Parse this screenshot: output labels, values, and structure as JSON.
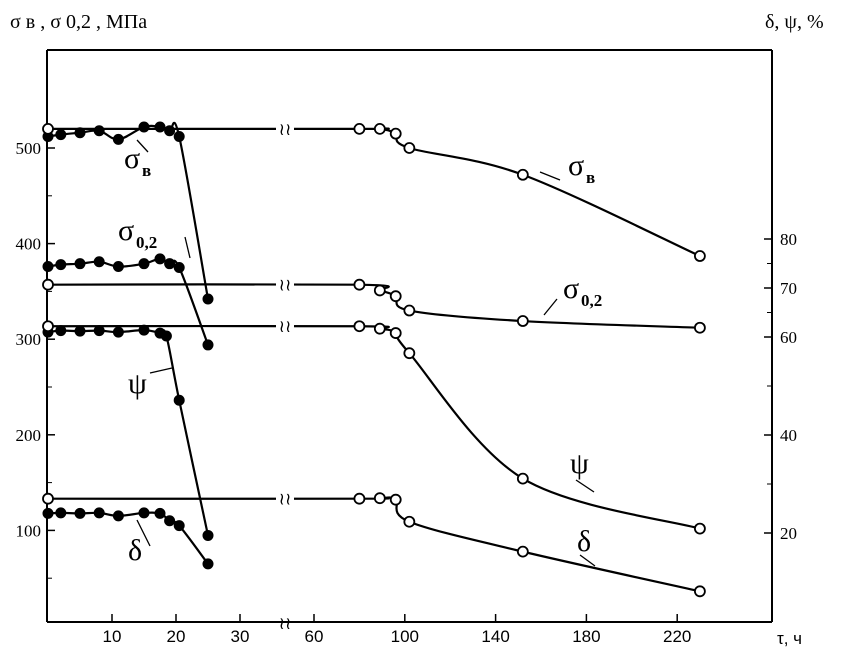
{
  "chart_data": {
    "type": "line",
    "left_axis_label": "σ в , σ 0,2 , МПа",
    "right_axis_label": "δ, ψ, %",
    "x_axis_label": "τ, ч",
    "x_break": "≀≀",
    "left_ticks": [
      "100",
      "200",
      "300",
      "400",
      "500"
    ],
    "right_ticks": [
      "20",
      "40",
      "60",
      "70",
      "80"
    ],
    "x_ticks_segment1": [
      "10",
      "20",
      "30"
    ],
    "x_ticks_segment2": [
      "60",
      "100",
      "140",
      "180",
      "220"
    ],
    "curve_labels": {
      "sigma_b": "σв",
      "sigma_02": "σ0,2",
      "psi": "ψ",
      "delta": "δ"
    },
    "series": [
      {
        "key": "sigma_b",
        "axis": "left",
        "marker": "filled",
        "label": "σв",
        "x": [
          0,
          2,
          5,
          8,
          11,
          15,
          17.5,
          19,
          20.5,
          25
        ],
        "y": [
          512,
          514,
          516,
          518,
          509,
          522,
          522,
          518,
          512,
          342
        ]
      },
      {
        "key": "sigma_02",
        "axis": "left",
        "marker": "filled",
        "label": "σ0,2",
        "x": [
          0,
          2,
          5,
          8,
          11,
          15,
          17.5,
          19,
          20.5,
          25
        ],
        "y": [
          376,
          378,
          379,
          381,
          376,
          379,
          384,
          379,
          375,
          294
        ]
      },
      {
        "key": "psi",
        "axis": "right",
        "marker": "filled",
        "label": "ψ",
        "x": [
          0,
          2,
          5,
          8,
          11,
          15,
          17.5,
          18.5,
          20.5,
          25
        ],
        "y": [
          61,
          61.3,
          61.2,
          61.3,
          61,
          61.4,
          60.8,
          60.2,
          47.1,
          19.5
        ]
      },
      {
        "key": "delta",
        "axis": "right",
        "marker": "filled",
        "label": "δ",
        "x": [
          0,
          2,
          5,
          8,
          11,
          15,
          17.5,
          19,
          20.5,
          25
        ],
        "y": [
          24,
          24.1,
          24,
          24.1,
          23.5,
          24.1,
          24,
          22.5,
          21.5,
          13.7
        ]
      },
      {
        "key": "sigma_b_aged",
        "axis": "left",
        "marker": "open",
        "label": "σв",
        "x": [
          0,
          80,
          89,
          96,
          102,
          152,
          230
        ],
        "y": [
          520,
          520,
          520,
          515,
          500,
          472,
          387
        ]
      },
      {
        "key": "sigma_02_aged",
        "axis": "left",
        "marker": "open",
        "label": "σ0,2",
        "x": [
          0,
          80,
          89,
          96,
          102,
          152,
          230
        ],
        "y": [
          357,
          357,
          351,
          345,
          330,
          319,
          312
        ]
      },
      {
        "key": "psi_aged",
        "axis": "right",
        "marker": "open",
        "label": "ψ",
        "x": [
          0,
          80,
          89,
          96,
          102,
          152,
          230
        ],
        "y": [
          62.2,
          62.2,
          61.7,
          60.8,
          56.7,
          31.1,
          20.9
        ]
      },
      {
        "key": "delta_aged",
        "axis": "right",
        "marker": "open",
        "label": "δ",
        "x": [
          0,
          80,
          89,
          96,
          102,
          152,
          230
        ],
        "y": [
          27,
          27,
          27.1,
          26.8,
          22.3,
          16.2,
          8.1
        ]
      }
    ]
  }
}
